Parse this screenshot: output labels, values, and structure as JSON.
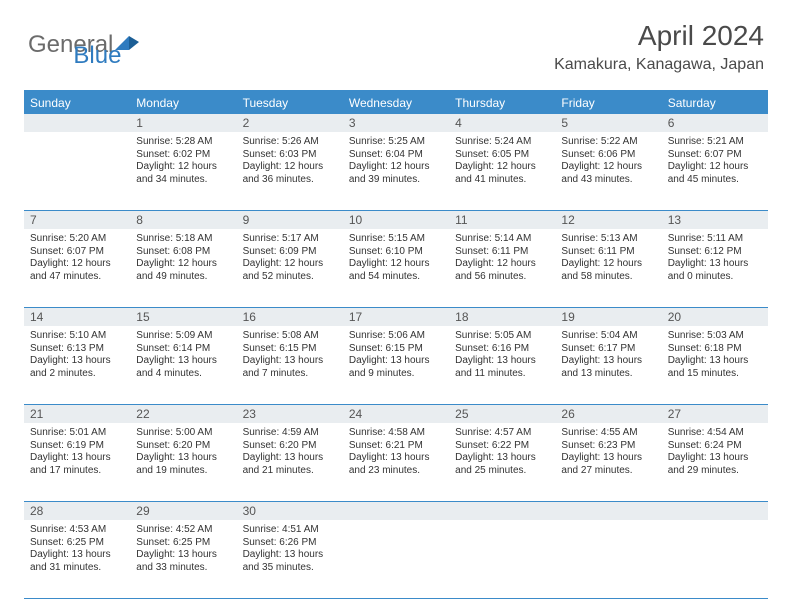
{
  "brand": {
    "part1": "General",
    "part2": "Blue"
  },
  "title": "April 2024",
  "location": "Kamakura, Kanagawa, Japan",
  "colors": {
    "header_bar": "#3b8bc9",
    "daynum_bg": "#e9edf0",
    "text": "#333333"
  },
  "dow": [
    "Sunday",
    "Monday",
    "Tuesday",
    "Wednesday",
    "Thursday",
    "Friday",
    "Saturday"
  ],
  "weeks": [
    [
      {
        "n": "",
        "sr": "",
        "ss": "",
        "dl": ""
      },
      {
        "n": "1",
        "sr": "Sunrise: 5:28 AM",
        "ss": "Sunset: 6:02 PM",
        "dl": "Daylight: 12 hours and 34 minutes."
      },
      {
        "n": "2",
        "sr": "Sunrise: 5:26 AM",
        "ss": "Sunset: 6:03 PM",
        "dl": "Daylight: 12 hours and 36 minutes."
      },
      {
        "n": "3",
        "sr": "Sunrise: 5:25 AM",
        "ss": "Sunset: 6:04 PM",
        "dl": "Daylight: 12 hours and 39 minutes."
      },
      {
        "n": "4",
        "sr": "Sunrise: 5:24 AM",
        "ss": "Sunset: 6:05 PM",
        "dl": "Daylight: 12 hours and 41 minutes."
      },
      {
        "n": "5",
        "sr": "Sunrise: 5:22 AM",
        "ss": "Sunset: 6:06 PM",
        "dl": "Daylight: 12 hours and 43 minutes."
      },
      {
        "n": "6",
        "sr": "Sunrise: 5:21 AM",
        "ss": "Sunset: 6:07 PM",
        "dl": "Daylight: 12 hours and 45 minutes."
      }
    ],
    [
      {
        "n": "7",
        "sr": "Sunrise: 5:20 AM",
        "ss": "Sunset: 6:07 PM",
        "dl": "Daylight: 12 hours and 47 minutes."
      },
      {
        "n": "8",
        "sr": "Sunrise: 5:18 AM",
        "ss": "Sunset: 6:08 PM",
        "dl": "Daylight: 12 hours and 49 minutes."
      },
      {
        "n": "9",
        "sr": "Sunrise: 5:17 AM",
        "ss": "Sunset: 6:09 PM",
        "dl": "Daylight: 12 hours and 52 minutes."
      },
      {
        "n": "10",
        "sr": "Sunrise: 5:15 AM",
        "ss": "Sunset: 6:10 PM",
        "dl": "Daylight: 12 hours and 54 minutes."
      },
      {
        "n": "11",
        "sr": "Sunrise: 5:14 AM",
        "ss": "Sunset: 6:11 PM",
        "dl": "Daylight: 12 hours and 56 minutes."
      },
      {
        "n": "12",
        "sr": "Sunrise: 5:13 AM",
        "ss": "Sunset: 6:11 PM",
        "dl": "Daylight: 12 hours and 58 minutes."
      },
      {
        "n": "13",
        "sr": "Sunrise: 5:11 AM",
        "ss": "Sunset: 6:12 PM",
        "dl": "Daylight: 13 hours and 0 minutes."
      }
    ],
    [
      {
        "n": "14",
        "sr": "Sunrise: 5:10 AM",
        "ss": "Sunset: 6:13 PM",
        "dl": "Daylight: 13 hours and 2 minutes."
      },
      {
        "n": "15",
        "sr": "Sunrise: 5:09 AM",
        "ss": "Sunset: 6:14 PM",
        "dl": "Daylight: 13 hours and 4 minutes."
      },
      {
        "n": "16",
        "sr": "Sunrise: 5:08 AM",
        "ss": "Sunset: 6:15 PM",
        "dl": "Daylight: 13 hours and 7 minutes."
      },
      {
        "n": "17",
        "sr": "Sunrise: 5:06 AM",
        "ss": "Sunset: 6:15 PM",
        "dl": "Daylight: 13 hours and 9 minutes."
      },
      {
        "n": "18",
        "sr": "Sunrise: 5:05 AM",
        "ss": "Sunset: 6:16 PM",
        "dl": "Daylight: 13 hours and 11 minutes."
      },
      {
        "n": "19",
        "sr": "Sunrise: 5:04 AM",
        "ss": "Sunset: 6:17 PM",
        "dl": "Daylight: 13 hours and 13 minutes."
      },
      {
        "n": "20",
        "sr": "Sunrise: 5:03 AM",
        "ss": "Sunset: 6:18 PM",
        "dl": "Daylight: 13 hours and 15 minutes."
      }
    ],
    [
      {
        "n": "21",
        "sr": "Sunrise: 5:01 AM",
        "ss": "Sunset: 6:19 PM",
        "dl": "Daylight: 13 hours and 17 minutes."
      },
      {
        "n": "22",
        "sr": "Sunrise: 5:00 AM",
        "ss": "Sunset: 6:20 PM",
        "dl": "Daylight: 13 hours and 19 minutes."
      },
      {
        "n": "23",
        "sr": "Sunrise: 4:59 AM",
        "ss": "Sunset: 6:20 PM",
        "dl": "Daylight: 13 hours and 21 minutes."
      },
      {
        "n": "24",
        "sr": "Sunrise: 4:58 AM",
        "ss": "Sunset: 6:21 PM",
        "dl": "Daylight: 13 hours and 23 minutes."
      },
      {
        "n": "25",
        "sr": "Sunrise: 4:57 AM",
        "ss": "Sunset: 6:22 PM",
        "dl": "Daylight: 13 hours and 25 minutes."
      },
      {
        "n": "26",
        "sr": "Sunrise: 4:55 AM",
        "ss": "Sunset: 6:23 PM",
        "dl": "Daylight: 13 hours and 27 minutes."
      },
      {
        "n": "27",
        "sr": "Sunrise: 4:54 AM",
        "ss": "Sunset: 6:24 PM",
        "dl": "Daylight: 13 hours and 29 minutes."
      }
    ],
    [
      {
        "n": "28",
        "sr": "Sunrise: 4:53 AM",
        "ss": "Sunset: 6:25 PM",
        "dl": "Daylight: 13 hours and 31 minutes."
      },
      {
        "n": "29",
        "sr": "Sunrise: 4:52 AM",
        "ss": "Sunset: 6:25 PM",
        "dl": "Daylight: 13 hours and 33 minutes."
      },
      {
        "n": "30",
        "sr": "Sunrise: 4:51 AM",
        "ss": "Sunset: 6:26 PM",
        "dl": "Daylight: 13 hours and 35 minutes."
      },
      {
        "n": "",
        "sr": "",
        "ss": "",
        "dl": ""
      },
      {
        "n": "",
        "sr": "",
        "ss": "",
        "dl": ""
      },
      {
        "n": "",
        "sr": "",
        "ss": "",
        "dl": ""
      },
      {
        "n": "",
        "sr": "",
        "ss": "",
        "dl": ""
      }
    ]
  ]
}
